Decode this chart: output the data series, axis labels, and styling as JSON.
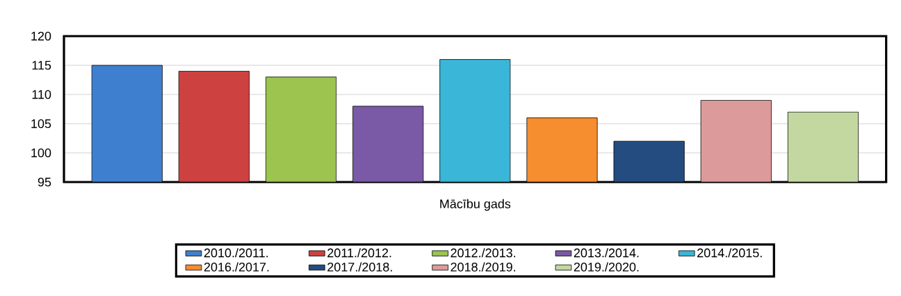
{
  "chart_data": {
    "type": "bar",
    "xlabel": "Mācību gads",
    "categories": [
      null
    ],
    "series": [
      {
        "name": "2010./2011.",
        "color": "#3f7fcf",
        "values": [
          115
        ]
      },
      {
        "name": "2011./2012.",
        "color": "#cd4240",
        "values": [
          114
        ]
      },
      {
        "name": "2012./2013.",
        "color": "#9cc44e",
        "values": [
          113
        ]
      },
      {
        "name": "2013./2014.",
        "color": "#7a59a6",
        "values": [
          108
        ]
      },
      {
        "name": "2014./2015.",
        "color": "#3ab6d8",
        "values": [
          116
        ]
      },
      {
        "name": "2016./2017.",
        "color": "#f68d2e",
        "values": [
          106
        ]
      },
      {
        "name": "2017./2018.",
        "color": "#244c80",
        "values": [
          102
        ]
      },
      {
        "name": "2018./2019.",
        "color": "#dc9b9a",
        "values": [
          109
        ]
      },
      {
        "name": "2019./2020.",
        "color": "#c3d8a0",
        "values": [
          107
        ]
      }
    ],
    "ylim": [
      95,
      120
    ],
    "yticks": [
      95,
      100,
      105,
      110,
      115,
      120
    ],
    "grid": "y",
    "legend": "bottom"
  }
}
